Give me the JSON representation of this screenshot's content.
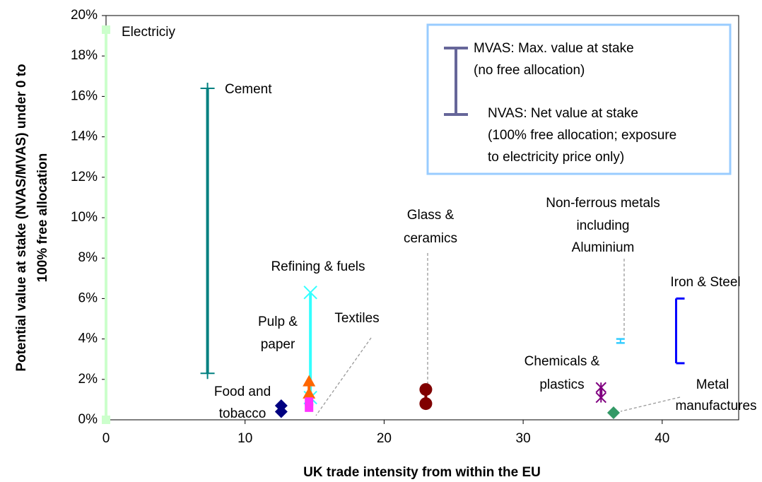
{
  "chart_data": {
    "type": "range",
    "xlabel": "UK trade intensity from within the EU",
    "ylabel": [
      "Potential value at stake (NVAS/MVAS) under 0 to",
      "100% free allocation"
    ],
    "xlim": [
      0,
      45.5
    ],
    "ylim": [
      0,
      20
    ],
    "xticks": [
      0,
      10,
      20,
      30,
      40
    ],
    "yticks": [
      {
        "value": 0,
        "label": "0%"
      },
      {
        "value": 2,
        "label": "2%"
      },
      {
        "value": 4,
        "label": "4%"
      },
      {
        "value": 6,
        "label": "6%"
      },
      {
        "value": 8,
        "label": "8%"
      },
      {
        "value": 10,
        "label": "10%"
      },
      {
        "value": 12,
        "label": "12%"
      },
      {
        "value": 14,
        "label": "14%"
      },
      {
        "value": 16,
        "label": "16%"
      },
      {
        "value": 18,
        "label": "18%"
      },
      {
        "value": 20,
        "label": "20%"
      }
    ],
    "series": [
      {
        "label": [
          "Electriciy"
        ],
        "color": "#ccffcc",
        "marker": "square",
        "x": 0,
        "values": [
          0,
          19.3
        ]
      },
      {
        "label": [
          "Cement"
        ],
        "color": "#008080",
        "marker": "plus",
        "x": 7.3,
        "values": [
          2.3,
          16.4
        ]
      },
      {
        "label": [
          "Refining & fuels"
        ],
        "color": "#33ffff",
        "marker": "cross",
        "x": 14.7,
        "values": [
          1.1,
          6.3
        ]
      },
      {
        "label": [
          "Pulp &",
          "paper"
        ],
        "color": "#ff6600",
        "marker": "triangle",
        "x": 14.6,
        "values": [
          1.3,
          1.9
        ]
      },
      {
        "label": [
          "Textiles"
        ],
        "color": "#ff33ff",
        "marker": "square",
        "x": 14.6,
        "values": [
          0.6,
          0.9
        ]
      },
      {
        "label": [
          "Food and",
          "tobacco"
        ],
        "color": "#000080",
        "marker": "diamond",
        "x": 12.6,
        "values": [
          0.4,
          0.7
        ]
      },
      {
        "label": [
          "Glass &",
          "ceramics"
        ],
        "color": "#800000",
        "marker": "circle",
        "x": 23,
        "values": [
          0.8,
          1.5
        ]
      },
      {
        "label": [
          "Non-ferrous metals",
          "including",
          "Aluminium"
        ],
        "color": "#33ccff",
        "marker": "cap",
        "x": 37,
        "values": [
          3.8,
          4.0
        ]
      },
      {
        "label": [
          "Iron & Steel"
        ],
        "color": "#0000ff",
        "marker": "bracket",
        "x": 41,
        "values": [
          2.8,
          6.0
        ]
      },
      {
        "label": [
          "Chemicals &",
          "plastics"
        ],
        "color": "#800080",
        "marker": "asterisk",
        "x": 35.6,
        "values": [
          1.1,
          1.6
        ]
      },
      {
        "label": [
          "Metal",
          "manufactures"
        ],
        "color": "#339966",
        "marker": "diamond",
        "x": 36.5,
        "values": [
          0.35
        ]
      }
    ],
    "legend": {
      "color": "#666699",
      "top": [
        "MVAS: Max. value at stake",
        "(no free allocation)"
      ],
      "bottom": [
        "NVAS: Net value at stake",
        "(100% free allocation; exposure",
        "to electricity price only)"
      ]
    }
  }
}
